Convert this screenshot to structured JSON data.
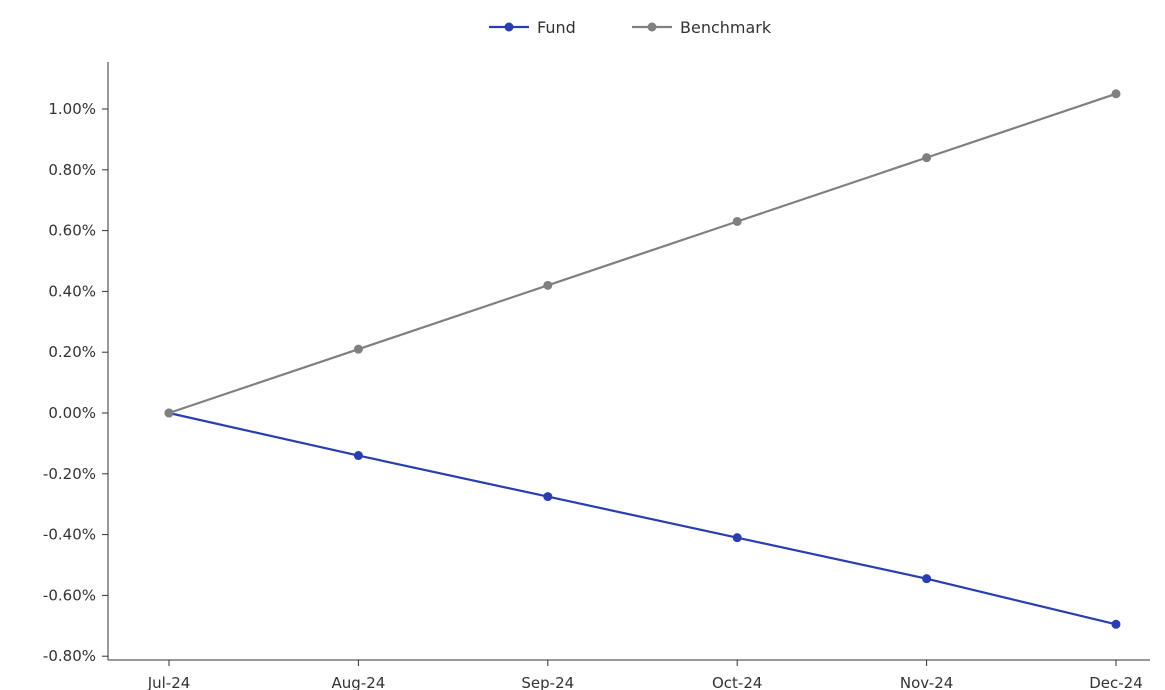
{
  "chart_data": {
    "type": "line",
    "title": "",
    "xlabel": "",
    "ylabel": "",
    "categories": [
      "Jul-24",
      "Aug-24",
      "Sep-24",
      "Oct-24",
      "Nov-24",
      "Dec-24"
    ],
    "series": [
      {
        "name": "Fund",
        "color": "#2a3eb1",
        "values": [
          0.0,
          -0.14,
          -0.275,
          -0.41,
          -0.545,
          -0.695
        ]
      },
      {
        "name": "Benchmark",
        "color": "#808080",
        "values": [
          0.0,
          0.21,
          0.42,
          0.63,
          0.84,
          1.05
        ]
      }
    ],
    "ylim": [
      -0.8,
      1.1
    ],
    "yticks": [
      -0.8,
      -0.6,
      -0.4,
      -0.2,
      0.0,
      0.2,
      0.4,
      0.6,
      0.8,
      1.0
    ],
    "ytick_labels": [
      "-0.80%",
      "-0.60%",
      "-0.40%",
      "-0.20%",
      "0.00%",
      "0.20%",
      "0.40%",
      "0.60%",
      "0.80%",
      "1.00%"
    ],
    "legend": "top-center",
    "grid": false
  }
}
